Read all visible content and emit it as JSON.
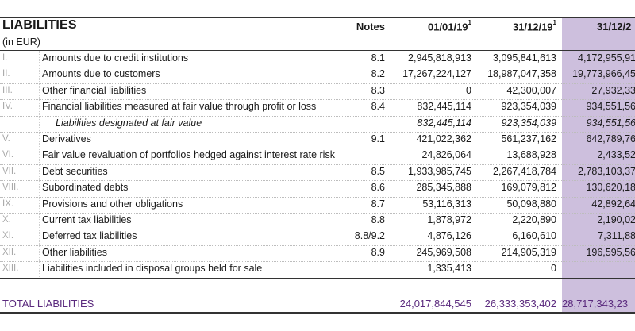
{
  "table": {
    "title": "LIABILITIES",
    "subtitle": "(in EUR)",
    "headers": {
      "notes": "Notes",
      "col1": "01/01/19",
      "col1_sup": "1",
      "col2": "31/12/19",
      "col2_sup": "1",
      "col3": "31/12/2"
    },
    "rows": [
      {
        "num": "I.",
        "label": "Amounts due to credit institutions",
        "notes": "8.1",
        "v1": "2,945,818,913",
        "v2": "3,095,841,613",
        "v3": "4,172,955,91"
      },
      {
        "num": "II.",
        "label": "Amounts due to customers",
        "notes": "8.2",
        "v1": "17,267,224,127",
        "v2": "18,987,047,358",
        "v3": "19,773,966,45"
      },
      {
        "num": "III.",
        "label": "Other financial liabilities",
        "notes": "8.3",
        "v1": "0",
        "v2": "42,300,007",
        "v3": "27,932,33"
      },
      {
        "num": "IV.",
        "label": "Financial liabilities measured at fair value through profit or loss",
        "notes": "8.4",
        "v1": "832,445,114",
        "v2": "923,354,039",
        "v3": "934,551,56"
      },
      {
        "num": "",
        "label": "Liabilities designated at fair value",
        "notes": "",
        "v1": "832,445,114",
        "v2": "923,354,039",
        "v3": "934,551,56",
        "italic": true
      },
      {
        "num": "V.",
        "label": "Derivatives",
        "notes": "9.1",
        "v1": "421,022,362",
        "v2": "561,237,162",
        "v3": "642,789,76"
      },
      {
        "num": "VI.",
        "label": "Fair value revaluation of portfolios hedged against interest rate risk",
        "notes": "",
        "v1": "24,826,064",
        "v2": "13,688,928",
        "v3": "2,433,52"
      },
      {
        "num": "VII.",
        "label": "Debt securities",
        "notes": "8.5",
        "v1": "1,933,985,745",
        "v2": "2,267,418,784",
        "v3": "2,783,103,37"
      },
      {
        "num": "VIII.",
        "label": "Subordinated debts",
        "notes": "8.6",
        "v1": "285,345,888",
        "v2": "169,079,812",
        "v3": "130,620,18"
      },
      {
        "num": "IX.",
        "label": "Provisions and other obligations",
        "notes": "8.7",
        "v1": "53,116,313",
        "v2": "50,098,880",
        "v3": "42,892,64"
      },
      {
        "num": "X.",
        "label": "Current tax liabilities",
        "notes": "8.8",
        "v1": "1,878,972",
        "v2": "2,220,890",
        "v3": "2,190,02"
      },
      {
        "num": "XI.",
        "label": "Deferred tax liabilities",
        "notes": "8.8/9.2",
        "v1": "4,876,126",
        "v2": "6,160,610",
        "v3": "7,311,88"
      },
      {
        "num": "XII.",
        "label": "Other liabilities",
        "notes": "8.9",
        "v1": "245,969,508",
        "v2": "214,905,319",
        "v3": "196,595,56"
      },
      {
        "num": "XIII.",
        "label": "Liabilities included in disposal groups held for sale",
        "notes": "",
        "v1": "1,335,413",
        "v2": "0",
        "v3": ""
      }
    ],
    "total": {
      "label": "TOTAL LIABILITIES",
      "v1": "24,017,844,545",
      "v2": "26,333,353,402",
      "v3": "28,717,343,23"
    }
  }
}
